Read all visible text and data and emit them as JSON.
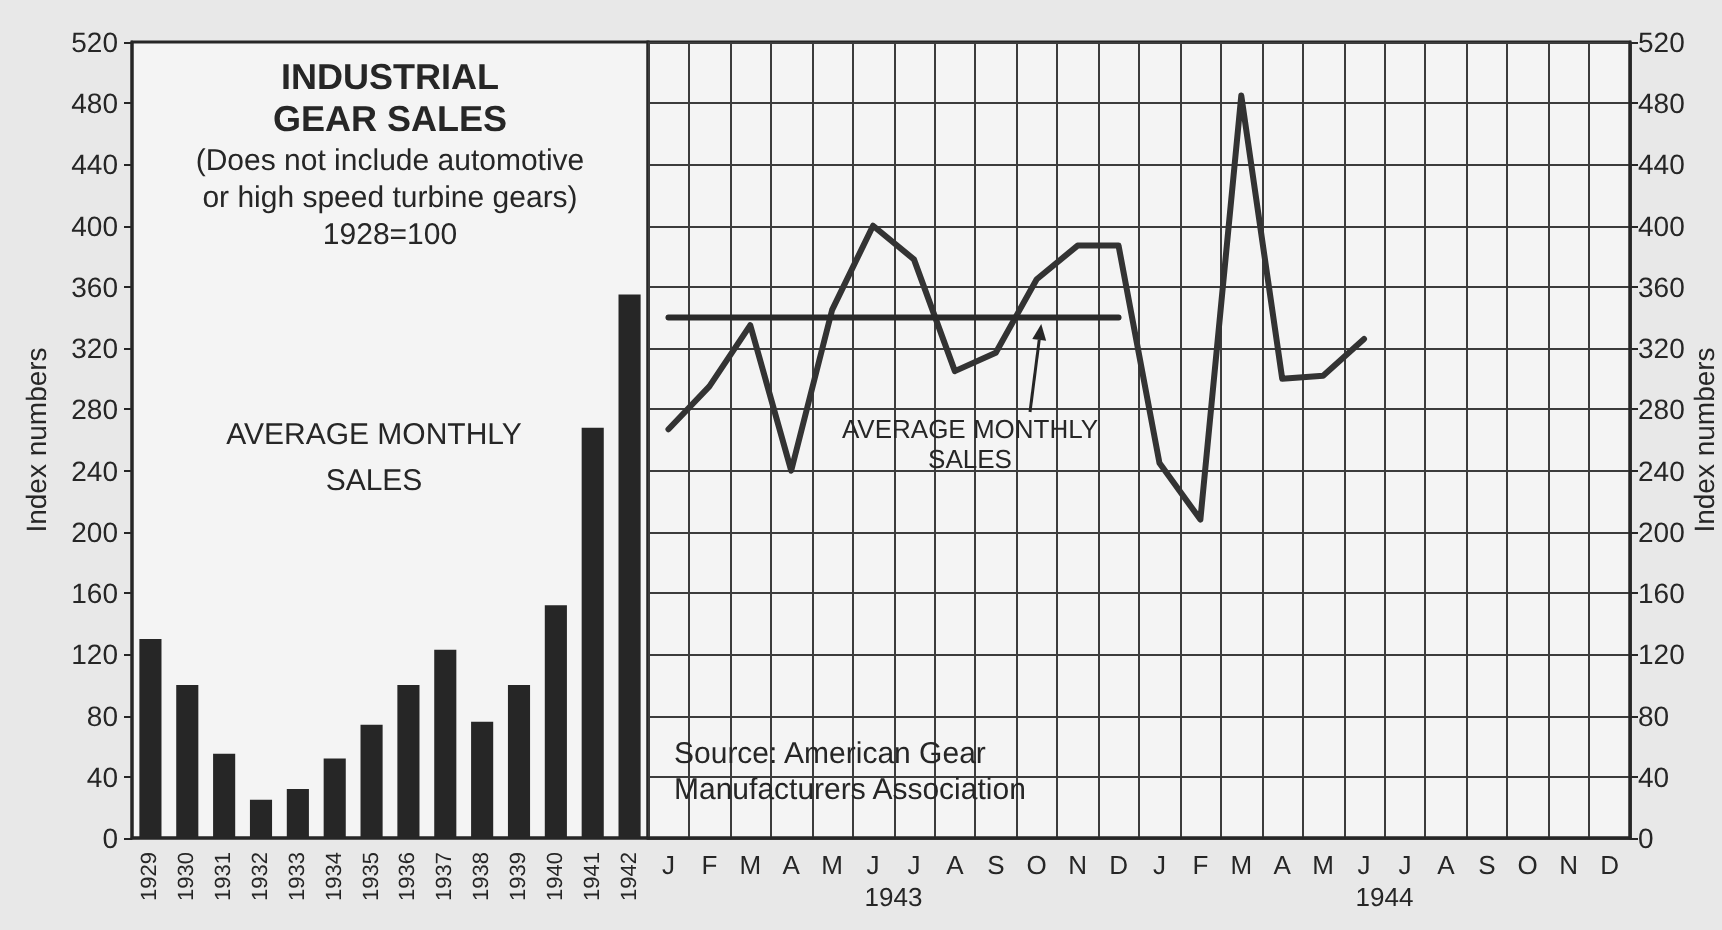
{
  "chart_data": [
    {
      "type": "bar",
      "title": "INDUSTRIAL GEAR SALES",
      "subtitle": "(Does not include automotive or high speed turbine gears) 1928=100",
      "categories": [
        "1929",
        "1930",
        "1931",
        "1932",
        "1933",
        "1934",
        "1935",
        "1936",
        "1937",
        "1938",
        "1939",
        "1940",
        "1941",
        "1942"
      ],
      "series": [
        {
          "name": "AVERAGE MONTHLY SALES",
          "color": "#262626",
          "values": [
            130,
            100,
            55,
            25,
            32,
            52,
            74,
            100,
            123,
            76,
            100,
            152,
            268,
            355
          ]
        }
      ],
      "ylim": [
        0,
        520
      ],
      "yticks": [
        0,
        40,
        80,
        120,
        160,
        200,
        240,
        280,
        320,
        360,
        400,
        440,
        480,
        520
      ],
      "ylabel": "Index numbers"
    },
    {
      "type": "line",
      "categories": [
        "J",
        "F",
        "M",
        "A",
        "M",
        "J",
        "J",
        "A",
        "S",
        "O",
        "N",
        "D",
        "J",
        "F",
        "M",
        "A",
        "M",
        "J",
        "J",
        "A",
        "S",
        "O",
        "N",
        "D"
      ],
      "series": [
        {
          "color": "#333333",
          "axis": "y2",
          "values": [
            267,
            295,
            335,
            240,
            345,
            400,
            378,
            305,
            317,
            365,
            387,
            387,
            245,
            208,
            485,
            300,
            302,
            326,
            null,
            null,
            null,
            null,
            null,
            null
          ]
        },
        {
          "name": "AVERAGE MONTHLY SALES",
          "color": "#2a2a2a",
          "axis": "y2",
          "values": [
            340,
            340,
            340,
            340,
            340,
            340,
            340,
            340,
            340,
            340,
            340,
            340,
            null,
            null,
            null,
            null,
            null,
            null,
            null,
            null,
            null,
            null,
            null,
            null
          ]
        }
      ],
      "y2lim": [
        0,
        520
      ],
      "y2ticks": [
        0,
        40,
        80,
        120,
        160,
        200,
        240,
        280,
        320,
        360,
        400,
        440,
        480,
        520
      ],
      "y2label": "Index numbers",
      "grid": true,
      "annotations": [
        "Source: American Gear Manufacturers Association",
        "1943",
        "1944"
      ]
    }
  ]
}
